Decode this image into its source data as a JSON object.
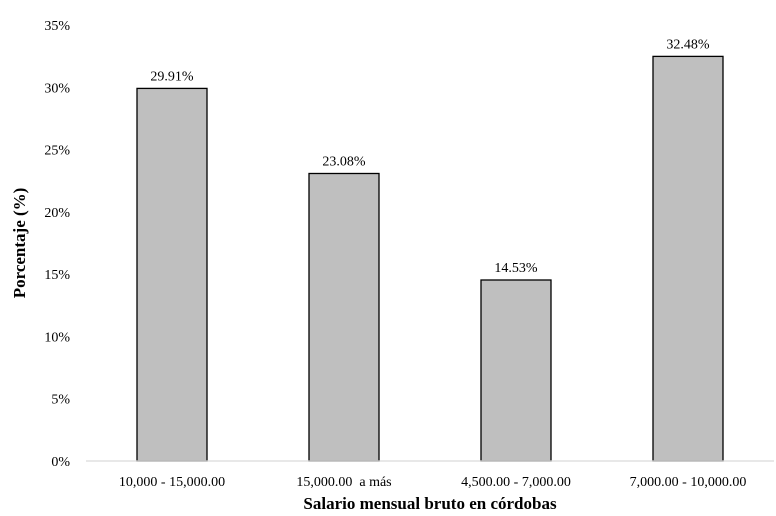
{
  "chart_data": {
    "type": "bar",
    "categories": [
      "10,000 - 15,000.00",
      "15,000.00  a más",
      "4,500.00 - 7,000.00",
      "7,000.00 - 10,000.00"
    ],
    "values": [
      29.91,
      23.08,
      14.53,
      32.48
    ],
    "data_labels": [
      "29.91%",
      "23.08%",
      "14.53%",
      "32.48%"
    ],
    "xlabel": "Salario mensual bruto en córdobas",
    "ylabel": "Porcentaje (%)",
    "ylim": [
      0,
      35
    ],
    "yticks": [
      0,
      5,
      10,
      15,
      20,
      25,
      30,
      35
    ],
    "ytick_labels": [
      "0%",
      "5%",
      "10%",
      "15%",
      "20%",
      "25%",
      "30%",
      "35%"
    ],
    "grid": false,
    "legend": "none"
  },
  "colors": {
    "bar_fill": "#bfbfbf",
    "bar_stroke": "#000000",
    "axis": "#d9d9d9",
    "text": "#000000"
  }
}
